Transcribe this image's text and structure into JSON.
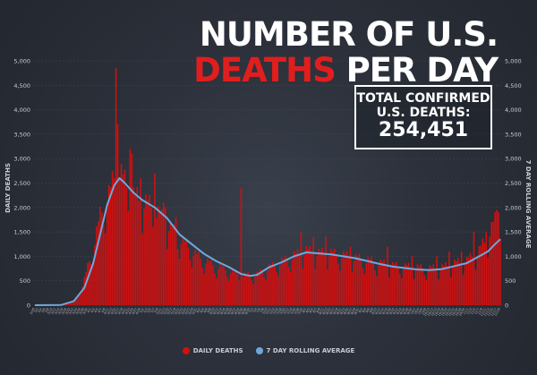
{
  "title": {
    "line1": "NUMBER OF U.S.",
    "line2_highlight": "DEATHS",
    "line2_rest": "PER DAY"
  },
  "total_box": {
    "line1": "TOTAL CONFIRMED",
    "line2": "U.S. DEATHS:",
    "value": "254,451"
  },
  "colors": {
    "bars": "#d40f0f",
    "line": "#6fa8dc",
    "title_highlight": "#e01e1e",
    "background": "#2a2f3a"
  },
  "legend": [
    {
      "label": "DAILY DEATHS",
      "color": "#d40f0f"
    },
    {
      "label": "7 DAY ROLLING AVERAGE",
      "color": "#6fa8dc"
    }
  ],
  "chart_data": {
    "type": "bar",
    "ylabel_left": "DAILY DEATHS",
    "ylabel_right": "7 DAY ROLLING AVERAGE",
    "ylim": [
      0,
      5000
    ],
    "yticks": [
      "0",
      "500",
      "1,000",
      "1,500",
      "2,000",
      "2,500",
      "3,000",
      "3,500",
      "4,000",
      "4,500",
      "5,000"
    ],
    "x_start": "2020-02-29",
    "x_end": "2020-11-19",
    "series": [
      {
        "name": "DAILY DEATHS",
        "type": "bar",
        "anchors": [
          [
            "2020-02-29",
            1
          ],
          [
            "2020-03-10",
            5
          ],
          [
            "2020-03-15",
            10
          ],
          [
            "2020-03-20",
            50
          ],
          [
            "2020-03-24",
            150
          ],
          [
            "2020-03-27",
            400
          ],
          [
            "2020-03-31",
            900
          ],
          [
            "2020-04-03",
            1300
          ],
          [
            "2020-04-06",
            1800
          ],
          [
            "2020-04-09",
            2100
          ],
          [
            "2020-04-12",
            2300
          ],
          [
            "2020-04-14",
            2600
          ],
          [
            "2020-04-17",
            2700
          ],
          [
            "2020-04-21",
            2400
          ],
          [
            "2020-04-25",
            2200
          ],
          [
            "2020-04-30",
            2100
          ],
          [
            "2020-05-05",
            2000
          ],
          [
            "2020-05-10",
            1800
          ],
          [
            "2020-05-15",
            1600
          ],
          [
            "2020-05-20",
            1400
          ],
          [
            "2020-05-25",
            1200
          ],
          [
            "2020-05-31",
            1000
          ],
          [
            "2020-06-07",
            850
          ],
          [
            "2020-06-14",
            750
          ],
          [
            "2020-06-21",
            650
          ],
          [
            "2020-06-28",
            600
          ],
          [
            "2020-07-04",
            620
          ],
          [
            "2020-07-08",
            700
          ],
          [
            "2020-07-12",
            780
          ],
          [
            "2020-07-18",
            880
          ],
          [
            "2020-07-25",
            1000
          ],
          [
            "2020-08-01",
            1100
          ],
          [
            "2020-08-08",
            1050
          ],
          [
            "2020-08-15",
            1050
          ],
          [
            "2020-08-22",
            1000
          ],
          [
            "2020-08-29",
            950
          ],
          [
            "2020-09-05",
            900
          ],
          [
            "2020-09-12",
            850
          ],
          [
            "2020-09-19",
            800
          ],
          [
            "2020-09-26",
            780
          ],
          [
            "2020-10-03",
            760
          ],
          [
            "2020-10-10",
            740
          ],
          [
            "2020-10-17",
            760
          ],
          [
            "2020-10-24",
            850
          ],
          [
            "2020-10-31",
            900
          ],
          [
            "2020-11-07",
            1100
          ],
          [
            "2020-11-12",
            1400
          ],
          [
            "2020-11-16",
            1700
          ],
          [
            "2020-11-19",
            1950
          ]
        ],
        "spikes": [
          [
            "2020-04-15",
            4850
          ],
          [
            "2020-04-16",
            3700
          ],
          [
            "2020-04-23",
            3200
          ],
          [
            "2020-04-24",
            3100
          ],
          [
            "2020-04-29",
            2600
          ],
          [
            "2020-05-07",
            2700
          ],
          [
            "2020-05-12",
            2100
          ],
          [
            "2020-05-13",
            2000
          ],
          [
            "2020-05-19",
            1800
          ],
          [
            "2020-06-25",
            2400
          ],
          [
            "2020-07-29",
            1500
          ],
          [
            "2020-08-05",
            1400
          ],
          [
            "2020-08-12",
            1400
          ],
          [
            "2020-08-26",
            1200
          ],
          [
            "2020-09-16",
            1200
          ],
          [
            "2020-09-30",
            1000
          ],
          [
            "2020-10-14",
            1000
          ],
          [
            "2020-10-21",
            1100
          ],
          [
            "2020-10-28",
            1100
          ],
          [
            "2020-11-04",
            1500
          ],
          [
            "2020-11-11",
            1500
          ],
          [
            "2020-11-17",
            1950
          ],
          [
            "2020-11-18",
            1900
          ]
        ]
      },
      {
        "name": "7 DAY ROLLING AVERAGE",
        "type": "line",
        "values": [
          [
            "2020-02-29",
            0
          ],
          [
            "2020-03-15",
            5
          ],
          [
            "2020-03-22",
            80
          ],
          [
            "2020-03-28",
            350
          ],
          [
            "2020-04-02",
            850
          ],
          [
            "2020-04-06",
            1450
          ],
          [
            "2020-04-10",
            2050
          ],
          [
            "2020-04-14",
            2450
          ],
          [
            "2020-04-17",
            2600
          ],
          [
            "2020-04-20",
            2500
          ],
          [
            "2020-04-25",
            2300
          ],
          [
            "2020-04-30",
            2150
          ],
          [
            "2020-05-07",
            2000
          ],
          [
            "2020-05-14",
            1780
          ],
          [
            "2020-05-21",
            1450
          ],
          [
            "2020-05-28",
            1250
          ],
          [
            "2020-06-04",
            1050
          ],
          [
            "2020-06-11",
            900
          ],
          [
            "2020-06-18",
            780
          ],
          [
            "2020-06-25",
            640
          ],
          [
            "2020-06-30",
            600
          ],
          [
            "2020-07-04",
            620
          ],
          [
            "2020-07-11",
            780
          ],
          [
            "2020-07-18",
            880
          ],
          [
            "2020-07-25",
            1000
          ],
          [
            "2020-08-01",
            1080
          ],
          [
            "2020-08-08",
            1060
          ],
          [
            "2020-08-15",
            1040
          ],
          [
            "2020-08-22",
            1000
          ],
          [
            "2020-08-29",
            960
          ],
          [
            "2020-09-05",
            900
          ],
          [
            "2020-09-12",
            840
          ],
          [
            "2020-09-19",
            790
          ],
          [
            "2020-09-26",
            760
          ],
          [
            "2020-10-03",
            730
          ],
          [
            "2020-10-10",
            720
          ],
          [
            "2020-10-17",
            740
          ],
          [
            "2020-10-24",
            800
          ],
          [
            "2020-10-31",
            860
          ],
          [
            "2020-11-07",
            1000
          ],
          [
            "2020-11-12",
            1100
          ],
          [
            "2020-11-16",
            1250
          ],
          [
            "2020-11-19",
            1350
          ]
        ]
      }
    ]
  }
}
